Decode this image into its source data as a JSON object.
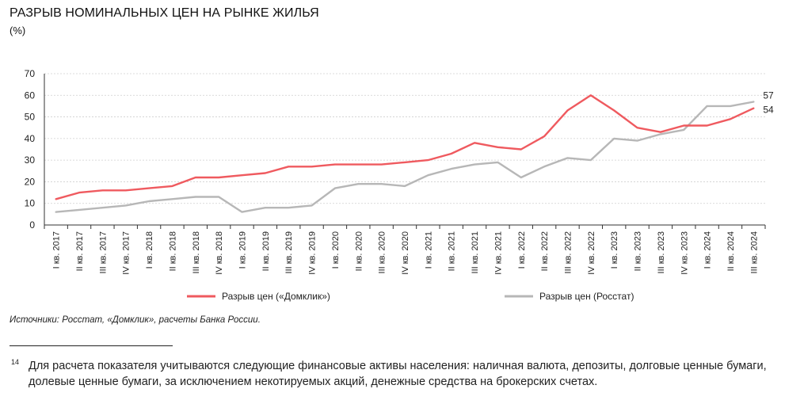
{
  "header": {
    "title": "РАЗРЫВ НОМИНАЛЬНЫХ ЦЕН НА РЫНКЕ ЖИЛЬЯ",
    "unit": "(%)"
  },
  "chart_data": {
    "type": "line",
    "categories": [
      "I кв. 2017",
      "II кв. 2017",
      "III кв. 2017",
      "IV кв. 2017",
      "I кв. 2018",
      "II кв. 2018",
      "III кв. 2018",
      "IV кв. 2018",
      "I кв. 2019",
      "II кв. 2019",
      "III кв. 2019",
      "IV кв. 2019",
      "I кв. 2020",
      "II кв. 2020",
      "III кв. 2020",
      "IV кв. 2020",
      "I кв. 2021",
      "II кв. 2021",
      "III кв. 2021",
      "IV кв. 2021",
      "I кв. 2022",
      "II кв. 2022",
      "III кв. 2022",
      "IV кв. 2022",
      "I кв. 2023",
      "II кв. 2023",
      "III кв. 2023",
      "IV кв. 2023",
      "I кв. 2024",
      "II кв. 2024",
      "III кв. 2024"
    ],
    "series": [
      {
        "name": "Разрыв цен («Домклик»)",
        "color": "#ef5a5f",
        "values": [
          12,
          15,
          16,
          16,
          17,
          18,
          22,
          22,
          23,
          24,
          27,
          27,
          28,
          28,
          28,
          29,
          30,
          33,
          38,
          36,
          35,
          41,
          53,
          60,
          53,
          45,
          43,
          46,
          46,
          49,
          54
        ]
      },
      {
        "name": "Разрыв цен (Росстат)",
        "color": "#b7b7b7",
        "values": [
          6,
          7,
          8,
          9,
          11,
          12,
          13,
          13,
          6,
          8,
          8,
          9,
          17,
          19,
          19,
          18,
          23,
          26,
          28,
          29,
          22,
          27,
          31,
          30,
          40,
          39,
          42,
          44,
          55,
          55,
          57
        ]
      }
    ],
    "end_labels": [
      "57",
      "54"
    ],
    "ylim": [
      0,
      70
    ],
    "yticks": [
      0,
      10,
      20,
      30,
      40,
      50,
      60,
      70
    ],
    "grid": true,
    "legend": "bottom"
  },
  "footer": {
    "source": "Источники: Росстат, «Домклик», расчеты Банка России.",
    "footnote_number": "14",
    "footnote_text": "Для расчета показателя учитываются следующие финансовые активы населения: наличная валюта, депозиты, долговые ценные бумаги, долевые ценные бумаги, за исключением некотируемых акций, денежные средства на брокерских счетах."
  }
}
